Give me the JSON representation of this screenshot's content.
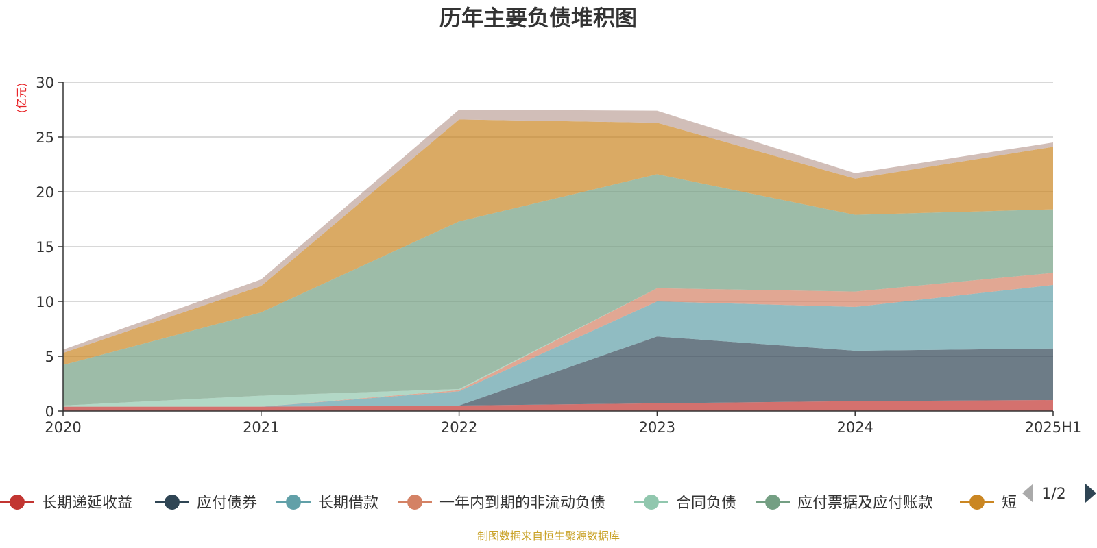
{
  "chart_data": {
    "type": "area",
    "stacked": true,
    "title": "历年主要负债堆积图",
    "unit_label": "(亿元)",
    "source_note": "制图数据来自恒生聚源数据库",
    "x": [
      "2020",
      "2021",
      "2022",
      "2023",
      "2024",
      "2025H1"
    ],
    "ylim": [
      0,
      30
    ],
    "yticks": [
      0,
      5,
      10,
      15,
      20,
      25,
      30
    ],
    "grid": true,
    "legend_position": "bottom",
    "series": [
      {
        "name": "长期递延收益",
        "color": "#c23531",
        "values": [
          0.4,
          0.4,
          0.5,
          0.7,
          0.9,
          1.0
        ]
      },
      {
        "name": "应付债券",
        "color": "#2f4554",
        "values": [
          0,
          0,
          0,
          6.1,
          4.6,
          4.7
        ]
      },
      {
        "name": "长期借款",
        "color": "#61a0a8",
        "values": [
          0,
          0,
          1.3,
          3.2,
          4.0,
          5.8
        ]
      },
      {
        "name": "一年内到期的非流动负债",
        "color": "#d48265",
        "values": [
          0,
          0,
          0.1,
          1.2,
          1.4,
          1.1
        ]
      },
      {
        "name": "合同负债",
        "color": "#91c7ae",
        "values": [
          0.1,
          1.0,
          0.1,
          0,
          0,
          0
        ]
      },
      {
        "name": "应付票据及应付账款",
        "color": "#749f83",
        "values": [
          3.7,
          7.6,
          15.3,
          10.4,
          7.0,
          5.8
        ]
      },
      {
        "name": "短",
        "color": "#ca8622",
        "values": [
          1.1,
          2.4,
          9.3,
          4.7,
          3.3,
          5.7
        ]
      },
      {
        "name": "",
        "color": "#bda29a",
        "values": [
          0.3,
          0.6,
          0.9,
          1.1,
          0.5,
          0.4
        ]
      }
    ]
  },
  "legend": {
    "pager_label": "1/2"
  }
}
